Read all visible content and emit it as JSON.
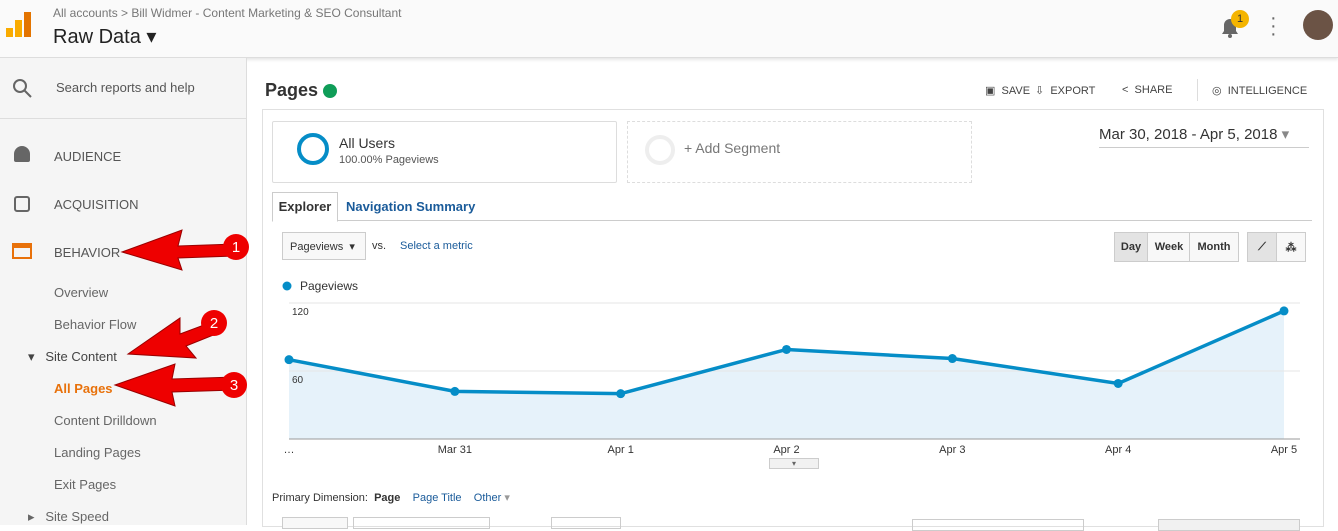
{
  "header": {
    "breadcrumb": [
      "All accounts",
      "Bill Widmer - Content Marketing & SEO Consultant"
    ],
    "view": "Raw Data",
    "notifications": "1"
  },
  "sidebar": {
    "search": "Search reports and help",
    "sections": [
      "AUDIENCE",
      "ACQUISITION",
      "BEHAVIOR"
    ],
    "items": [
      "Overview",
      "Behavior Flow",
      "Site Content",
      "All Pages",
      "Content Drilldown",
      "Landing Pages",
      "Exit Pages",
      "Site Speed"
    ]
  },
  "annotations": [
    "1",
    "2",
    "3"
  ],
  "report": {
    "title": "Pages",
    "actions": [
      "SAVE",
      "EXPORT",
      "SHARE",
      "INTELLIGENCE"
    ],
    "segment": {
      "name": "All Users",
      "detail": "100.00% Pageviews",
      "add": "+ Add Segment"
    },
    "date_range": "Mar 30, 2018 - Apr 5, 2018",
    "tabs": [
      "Explorer",
      "Navigation Summary"
    ],
    "metric": "Pageviews",
    "vs": "vs.",
    "select_metric": "Select a metric",
    "periods": [
      "Day",
      "Week",
      "Month"
    ],
    "primary_dimension": {
      "label": "Primary Dimension:",
      "options": [
        "Page",
        "Page Title",
        "Other"
      ]
    }
  },
  "chart_data": {
    "type": "line",
    "categories": [
      "…",
      "Mar 31",
      "Apr 1",
      "Apr 2",
      "Apr 3",
      "Apr 4",
      "Apr 5"
    ],
    "series": [
      {
        "name": "Pageviews",
        "color": "#058dc7",
        "values": [
          70,
          42,
          40,
          79,
          71,
          49,
          113
        ]
      }
    ],
    "ylim": [
      0,
      120
    ],
    "yticks": [
      60,
      120
    ],
    "grid": true
  }
}
